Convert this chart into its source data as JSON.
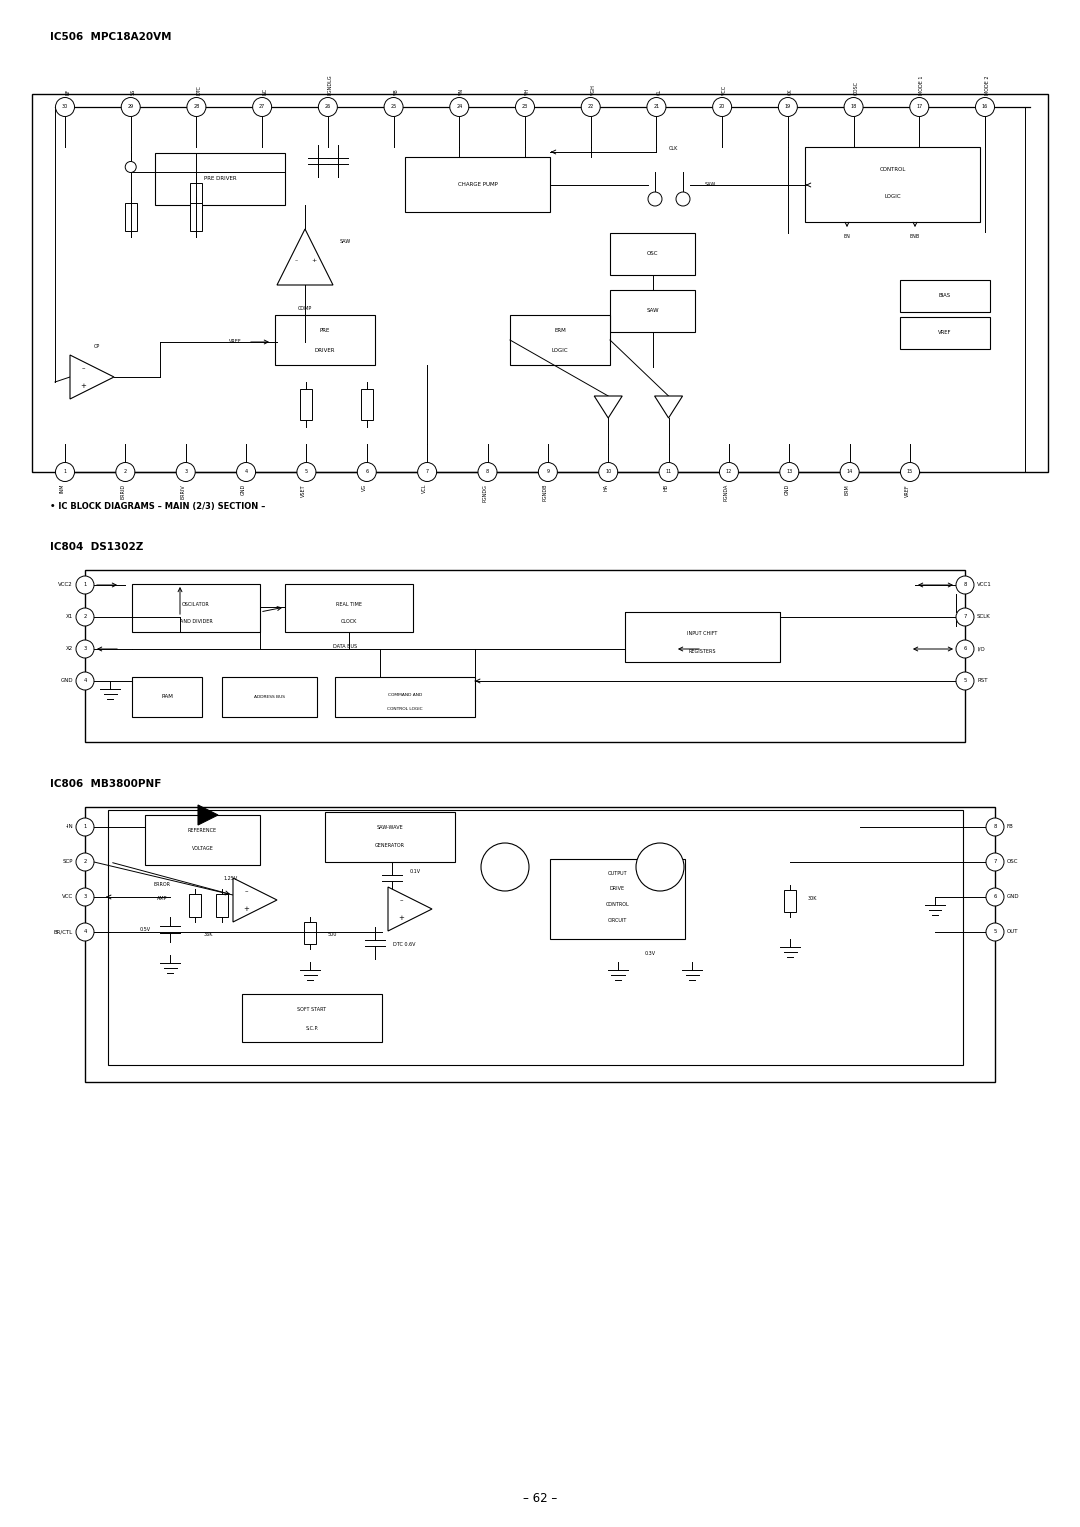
{
  "title_ic506": "IC506  MPC18A20VM",
  "section_title": "• IC BLOCK DIAGRAMS – MAIN (2/3) SECTION –",
  "title_ic804": "IC804  DS1302Z",
  "title_ic806": "IC806  MB3800PNF",
  "page_number": "– 62 –",
  "bg": "#ffffff",
  "top_pins_nums": [
    30,
    29,
    28,
    27,
    26,
    25,
    24,
    23,
    22,
    21,
    20,
    19,
    18,
    17,
    16
  ],
  "top_pins_names": [
    "RF",
    "SS",
    "DTC",
    "NC",
    "PGNDLG",
    "VB",
    "VN",
    "VH",
    "VGH",
    "CL",
    "VCC",
    "CK",
    "OOSC",
    "MODE 1",
    "MODE 2"
  ],
  "bot_pins_nums": [
    1,
    2,
    3,
    4,
    5,
    6,
    7,
    8,
    9,
    10,
    11,
    12,
    13,
    14,
    15
  ],
  "bot_pins_names": [
    "INM",
    "ERRID",
    "ERRIV",
    "GND",
    "VSET",
    "VG",
    "VCL",
    "PGNDG",
    "PGNDB",
    "HA",
    "HB",
    "PGNDA",
    "GND",
    "ERM",
    "VREF"
  ],
  "ic804_left_pins": [
    [
      1,
      "VCC2"
    ],
    [
      2,
      "X1"
    ],
    [
      3,
      "X2"
    ],
    [
      4,
      "GND"
    ]
  ],
  "ic804_right_pins": [
    [
      8,
      "VCC1"
    ],
    [
      7,
      "SCLK"
    ],
    [
      6,
      "I/O"
    ],
    [
      5,
      "RST"
    ]
  ],
  "ic806_left_pins": [
    [
      1,
      "-IN"
    ],
    [
      2,
      "SCP"
    ],
    [
      3,
      "VCC"
    ],
    [
      4,
      "BR/CTL"
    ]
  ],
  "ic806_right_pins": [
    [
      8,
      "FB"
    ],
    [
      7,
      "OSC"
    ],
    [
      6,
      "GND"
    ],
    [
      5,
      "OUT"
    ]
  ]
}
